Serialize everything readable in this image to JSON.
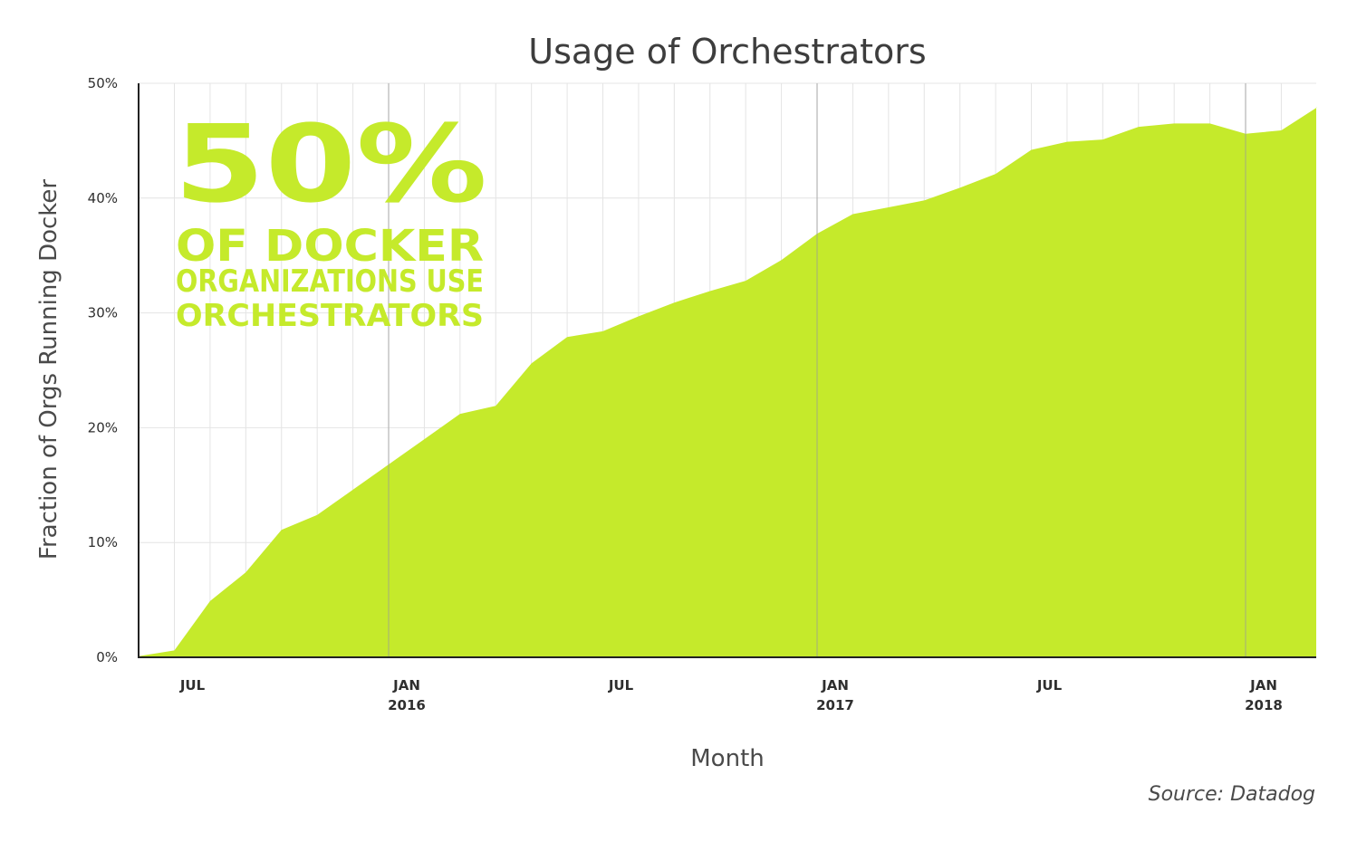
{
  "chart_data": {
    "type": "area",
    "title": "Usage of Orchestrators",
    "xlabel": "Month",
    "ylabel": "Fraction of Orgs Running Docker",
    "ylim": [
      0,
      50
    ],
    "yticks": [
      "0%",
      "10%",
      "20%",
      "30%",
      "40%",
      "50%"
    ],
    "xticks": [
      {
        "label": "JUL",
        "year": "",
        "month": "2015-07"
      },
      {
        "label": "JAN",
        "year": "2016",
        "month": "2016-01"
      },
      {
        "label": "JUL",
        "year": "",
        "month": "2016-07"
      },
      {
        "label": "JAN",
        "year": "2017",
        "month": "2017-01"
      },
      {
        "label": "JUL",
        "year": "",
        "month": "2017-07"
      },
      {
        "label": "JAN",
        "year": "2018",
        "month": "2018-01"
      }
    ],
    "x": [
      "2015-06",
      "2015-07",
      "2015-08",
      "2015-09",
      "2015-10",
      "2015-11",
      "2015-12",
      "2016-01",
      "2016-02",
      "2016-03",
      "2016-04",
      "2016-05",
      "2016-06",
      "2016-07",
      "2016-08",
      "2016-09",
      "2016-10",
      "2016-11",
      "2016-12",
      "2017-01",
      "2017-02",
      "2017-03",
      "2017-04",
      "2017-05",
      "2017-06",
      "2017-07",
      "2017-08",
      "2017-09",
      "2017-10",
      "2017-11",
      "2017-12",
      "2018-01",
      "2018-02",
      "2018-03"
    ],
    "values": [
      0.1,
      0.6,
      4.9,
      7.4,
      11.1,
      12.4,
      14.6,
      16.8,
      19.0,
      21.2,
      21.9,
      25.6,
      27.9,
      28.4,
      29.7,
      30.9,
      31.9,
      32.8,
      34.6,
      36.9,
      38.6,
      39.2,
      39.8,
      40.9,
      42.1,
      44.2,
      44.9,
      45.1,
      46.2,
      46.5,
      46.5,
      45.6,
      45.9,
      47.9
    ],
    "grid": true,
    "color": "#c5ea2b",
    "callout": {
      "big": "50%",
      "line1": "OF DOCKER",
      "line2": "ORGANIZATIONS USE",
      "line3": "ORCHESTRATORS"
    },
    "source": "Source: Datadog"
  }
}
